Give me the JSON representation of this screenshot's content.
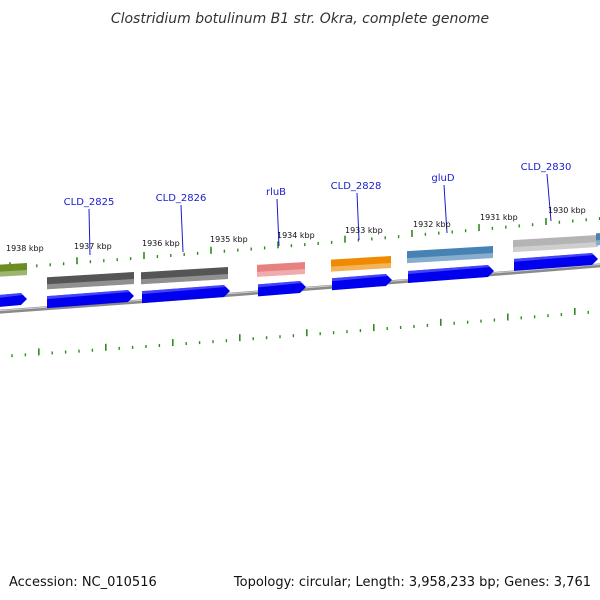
{
  "title": "Clostridium botulinum B1 str. Okra, complete genome",
  "accession_text": "Accession: NC_010516",
  "stats_text": "Topology: circular; Length: 3,958,233 bp; Genes: 3,761",
  "tick_labels": [
    {
      "label": "1938 kbp"
    },
    {
      "label": "1937 kbp"
    },
    {
      "label": "1936 kbp"
    },
    {
      "label": "1935 kbp"
    },
    {
      "label": "1934 kbp"
    },
    {
      "label": "1933 kbp"
    },
    {
      "label": "1932 kbp"
    },
    {
      "label": "1931 kbp"
    },
    {
      "label": "1930 kbp"
    }
  ],
  "gene_labels": [
    {
      "label": "CLD_2825"
    },
    {
      "label": "CLD_2826"
    },
    {
      "label": "rluB"
    },
    {
      "label": "CLD_2828"
    },
    {
      "label": "gluD"
    },
    {
      "label": "CLD_2830"
    }
  ],
  "colors": {
    "cds_arrow": "#0000ee",
    "tick": "#2e8b1e",
    "backbone": "#8a8a8a",
    "label_line": "#1a1ad0",
    "gene_dark_gray": "#555555",
    "gene_pink": "#e88080",
    "gene_orange": "#f08a00",
    "gene_steel_blue": "#4682b4",
    "gene_light_gray": "#b4b4b4",
    "gene_olive": "#6b8e23"
  }
}
